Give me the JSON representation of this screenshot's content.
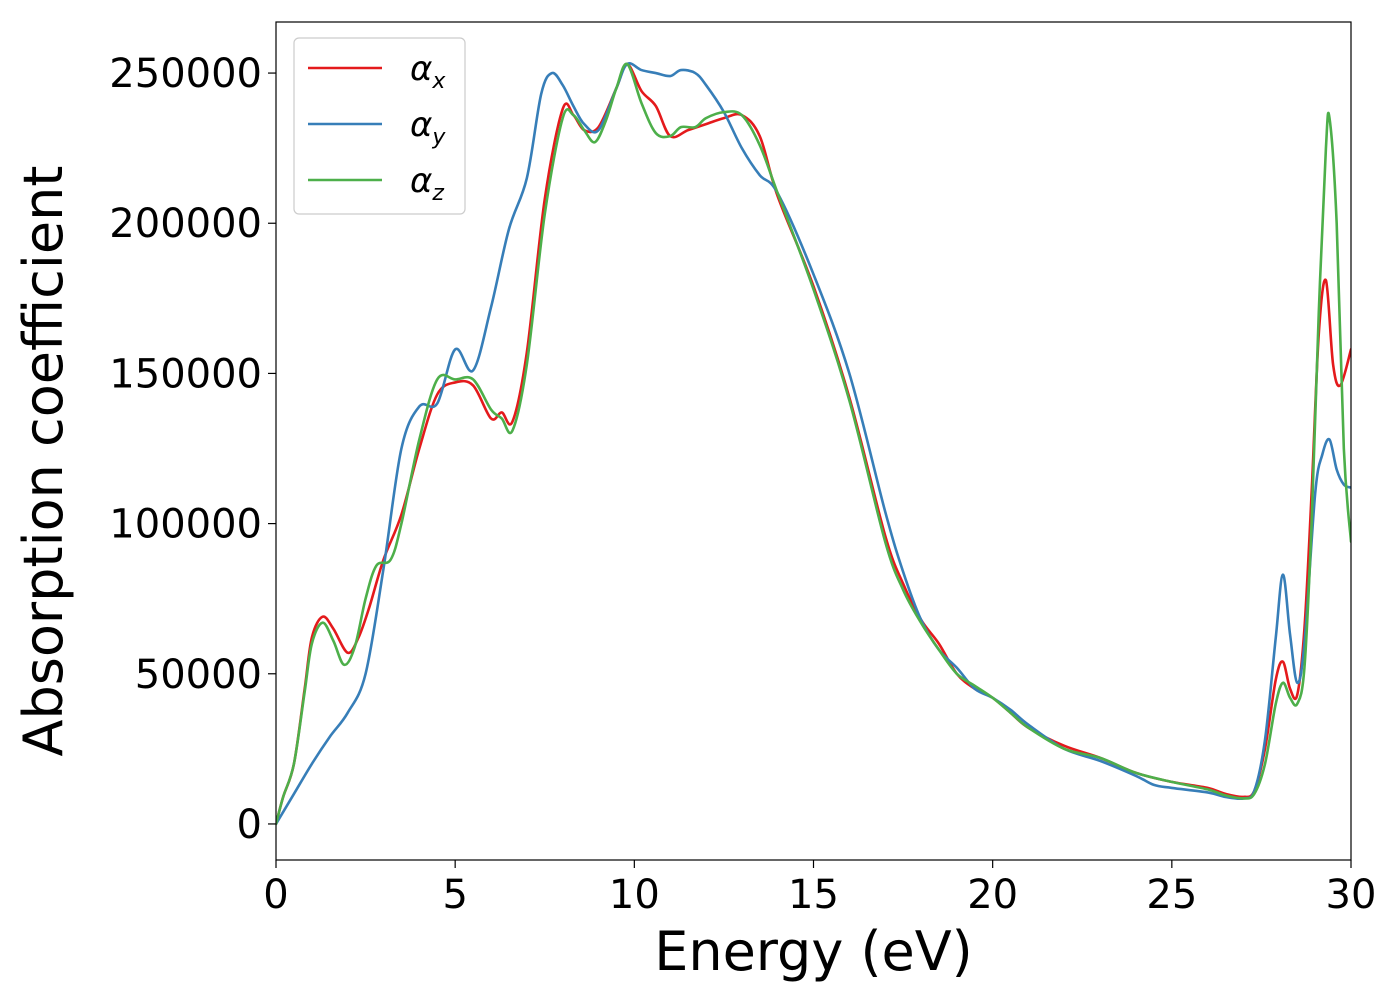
{
  "chart_data": {
    "type": "line",
    "xlabel": "Energy (eV)",
    "ylabel": "Absorption coefficient",
    "xlim": [
      0,
      30
    ],
    "ylim": [
      -12000,
      267000
    ],
    "xticks": [
      0,
      5,
      10,
      15,
      20,
      25,
      30
    ],
    "xtick_labels": [
      "0",
      "5",
      "10",
      "15",
      "20",
      "25",
      "30"
    ],
    "yticks": [
      0,
      50000,
      100000,
      150000,
      200000,
      250000
    ],
    "ytick_labels": [
      "0",
      "50000",
      "100000",
      "150000",
      "200000",
      "250000"
    ],
    "grid": false,
    "legend_position": "top-left",
    "series": [
      {
        "name": "α",
        "subscript": "x",
        "color": "#e41a1c",
        "x": [
          0,
          0.2,
          0.5,
          0.8,
          1.0,
          1.3,
          1.6,
          2.0,
          2.3,
          2.6,
          3.0,
          3.5,
          4.0,
          4.5,
          5.0,
          5.5,
          6.0,
          6.3,
          6.6,
          7.0,
          7.5,
          8.0,
          8.3,
          8.6,
          9.0,
          9.5,
          9.8,
          10.2,
          10.6,
          11.0,
          11.5,
          12.0,
          12.5,
          13.0,
          13.5,
          14.0,
          15.0,
          16.0,
          17.0,
          17.5,
          18.0,
          18.5,
          19.0,
          19.5,
          20.0,
          20.5,
          21.0,
          22.0,
          23.0,
          24.0,
          25.0,
          26.0,
          26.5,
          27.0,
          27.3,
          27.6,
          27.9,
          28.1,
          28.3,
          28.5,
          28.7,
          28.9,
          29.1,
          29.3,
          29.5,
          29.7,
          30.0
        ],
        "values": [
          0,
          9000,
          20000,
          45000,
          62000,
          69000,
          65000,
          57000,
          62000,
          72000,
          88000,
          103000,
          125000,
          143000,
          147000,
          146000,
          135000,
          137000,
          134000,
          157000,
          208000,
          238000,
          236000,
          231000,
          232000,
          245000,
          253000,
          244000,
          239000,
          229000,
          231000,
          233000,
          235000,
          236000,
          229000,
          209000,
          179000,
          142000,
          96000,
          80000,
          68000,
          60000,
          50000,
          45000,
          42000,
          37000,
          32000,
          26000,
          22000,
          17000,
          14000,
          12000,
          10000,
          9000,
          11000,
          25000,
          48000,
          54000,
          45000,
          43000,
          65000,
          110000,
          163000,
          181000,
          153000,
          146000,
          158000
        ]
      },
      {
        "name": "α",
        "subscript": "y",
        "color": "#377eb8",
        "x": [
          0,
          0.5,
          1.0,
          1.5,
          2.0,
          2.5,
          3.0,
          3.5,
          4.0,
          4.5,
          5.0,
          5.5,
          6.0,
          6.5,
          7.0,
          7.4,
          7.7,
          8.0,
          8.3,
          8.6,
          9.0,
          9.5,
          9.8,
          10.2,
          10.6,
          11.0,
          11.3,
          11.7,
          12.0,
          12.5,
          13.0,
          13.5,
          14.0,
          15.0,
          16.0,
          17.0,
          17.5,
          18.0,
          18.5,
          19.0,
          19.5,
          20.0,
          20.5,
          21.0,
          22.0,
          23.0,
          24.0,
          24.5,
          25.0,
          26.0,
          26.5,
          27.0,
          27.3,
          27.6,
          27.9,
          28.1,
          28.3,
          28.5,
          28.7,
          29.0,
          29.2,
          29.4,
          29.6,
          29.8,
          30.0
        ],
        "values": [
          0,
          10000,
          20000,
          29000,
          37000,
          50000,
          85000,
          125000,
          139000,
          140000,
          158000,
          151000,
          172000,
          198000,
          215000,
          243000,
          250000,
          246000,
          239000,
          233000,
          231000,
          245000,
          253000,
          251000,
          250000,
          249000,
          251000,
          250000,
          246000,
          237000,
          225000,
          216000,
          210000,
          183000,
          150000,
          104000,
          84000,
          68000,
          58000,
          52000,
          45000,
          42000,
          38000,
          33000,
          25000,
          21000,
          16000,
          13000,
          12000,
          10500,
          9000,
          8500,
          11000,
          28000,
          62000,
          83000,
          63000,
          47000,
          60000,
          110000,
          123000,
          128000,
          118000,
          113000,
          112000
        ]
      },
      {
        "name": "α",
        "subscript": "z",
        "color": "#4daf4a",
        "x": [
          0,
          0.2,
          0.5,
          0.8,
          1.0,
          1.3,
          1.6,
          1.9,
          2.2,
          2.5,
          2.8,
          3.2,
          3.5,
          4.0,
          4.5,
          5.0,
          5.5,
          6.0,
          6.3,
          6.6,
          7.0,
          7.5,
          8.0,
          8.3,
          8.6,
          8.9,
          9.2,
          9.5,
          9.8,
          10.2,
          10.6,
          11.0,
          11.3,
          11.7,
          12.0,
          12.5,
          13.0,
          13.5,
          14.0,
          15.0,
          16.0,
          17.0,
          17.5,
          18.0,
          18.5,
          19.0,
          19.5,
          20.0,
          20.5,
          21.0,
          22.0,
          23.0,
          24.0,
          25.0,
          26.0,
          26.5,
          27.0,
          27.3,
          27.6,
          27.9,
          28.1,
          28.3,
          28.5,
          28.7,
          28.9,
          29.1,
          29.3,
          29.4,
          29.6,
          29.8,
          30.0
        ],
        "values": [
          0,
          9000,
          20000,
          44000,
          60000,
          67000,
          61000,
          53000,
          59000,
          75000,
          86000,
          88000,
          100000,
          128000,
          148000,
          148000,
          148000,
          138000,
          135000,
          131000,
          153000,
          203000,
          235000,
          236000,
          231000,
          227000,
          234000,
          245000,
          253000,
          240000,
          230000,
          229000,
          232000,
          232000,
          235000,
          237000,
          236000,
          226000,
          210000,
          178000,
          141000,
          94000,
          78000,
          67000,
          58000,
          50000,
          46000,
          42000,
          37000,
          32000,
          25000,
          22000,
          17000,
          14000,
          11500,
          9500,
          8500,
          10000,
          20000,
          40000,
          47000,
          42000,
          40000,
          52000,
          100000,
          170000,
          225000,
          235000,
          200000,
          125000,
          94000
        ]
      }
    ]
  }
}
